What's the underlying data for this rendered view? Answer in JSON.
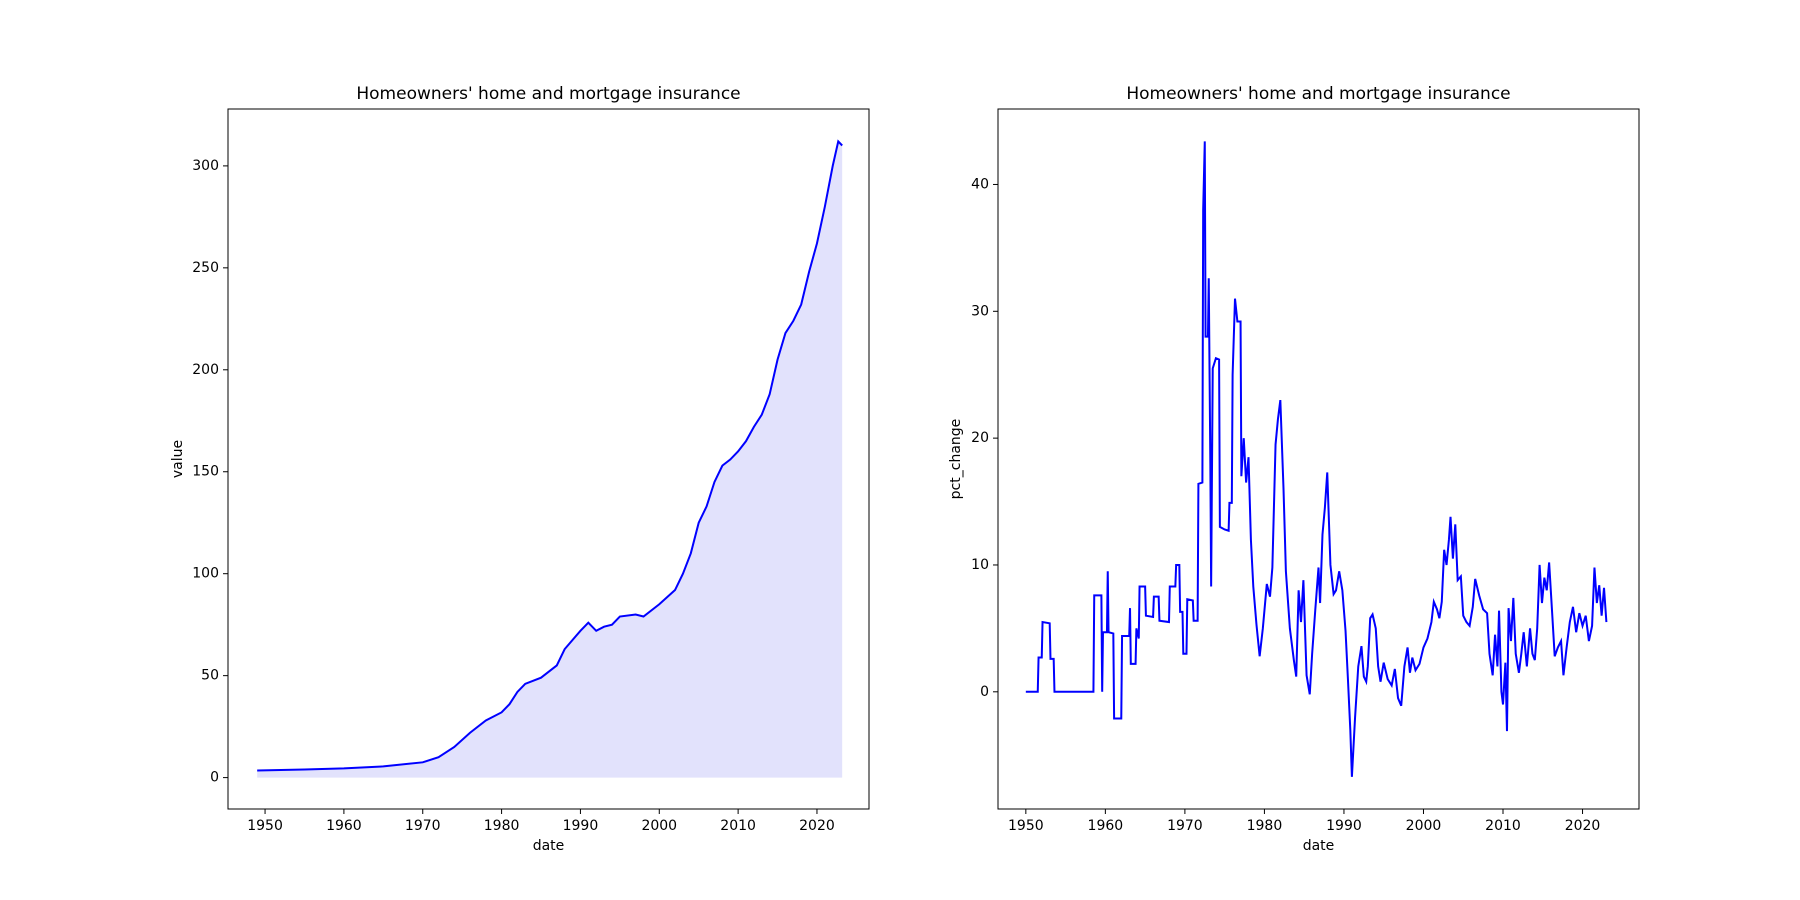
{
  "chart_data": [
    {
      "type": "area",
      "title": "Homeowners' home and mortgage insurance",
      "xlabel": "date",
      "ylabel": "value",
      "color": "#0000ff",
      "fill": "#e2e2fc",
      "xlim": [
        1945.3,
        2026.6
      ],
      "ylim": [
        -15.4,
        327.9
      ],
      "xticks": [
        1950,
        1960,
        1970,
        1980,
        1990,
        2000,
        2010,
        2020
      ],
      "yticks": [
        0,
        50,
        100,
        150,
        200,
        250,
        300
      ],
      "x": [
        1949,
        1955,
        1960,
        1965,
        1970,
        1972,
        1974,
        1976,
        1978,
        1980,
        1981,
        1982,
        1983,
        1985,
        1987,
        1988,
        1990,
        1991,
        1992,
        1993,
        1994,
        1995,
        1997,
        1998,
        2000,
        2002,
        2003,
        2004,
        2005,
        2006,
        2007,
        2008,
        2009,
        2010,
        2011,
        2012,
        2013,
        2014,
        2015,
        2016,
        2017,
        2018,
        2019,
        2020,
        2021,
        2022,
        2022.7,
        2023.2
      ],
      "values": [
        3.5,
        4,
        4.5,
        5.5,
        7.5,
        10,
        15,
        22,
        28,
        32,
        36,
        42,
        46,
        49,
        55,
        63,
        72,
        76,
        72,
        74,
        75,
        79,
        80,
        79,
        85,
        92,
        100,
        110,
        125,
        133,
        145,
        153,
        156,
        160,
        165,
        172,
        178,
        188,
        205,
        218,
        224,
        232,
        248,
        262,
        280,
        300,
        312,
        310
      ]
    },
    {
      "type": "line",
      "title": "Homeowners' home and mortgage insurance",
      "xlabel": "date",
      "ylabel": "pct_change",
      "color": "#0000ff",
      "xlim": [
        1946.5,
        2027.1
      ],
      "ylim": [
        -9.24,
        45.95
      ],
      "xticks": [
        1950,
        1960,
        1970,
        1980,
        1990,
        2000,
        2010,
        2020
      ],
      "yticks": [
        0,
        10,
        20,
        30,
        40
      ],
      "x": [
        1950,
        1951.5,
        1951.6,
        1952,
        1952.1,
        1953,
        1953.1,
        1953.5,
        1953.6,
        1958.5,
        1958.6,
        1959.5,
        1959.6,
        1959.7,
        1960.2,
        1960.3,
        1960.4,
        1961,
        1961.1,
        1962,
        1962.1,
        1963,
        1963.1,
        1963.2,
        1963.8,
        1963.9,
        1964.2,
        1964.3,
        1965,
        1965.1,
        1966,
        1966.1,
        1966.7,
        1966.8,
        1968,
        1968.1,
        1968.8,
        1968.9,
        1969.3,
        1969.4,
        1969.7,
        1969.8,
        1970.2,
        1970.3,
        1971,
        1971.1,
        1971.6,
        1971.7,
        1972.2,
        1972.3,
        1972.5,
        1972.6,
        1972.9,
        1973,
        1973.2,
        1973.3,
        1973.5,
        1973.9,
        1974.3,
        1974.4,
        1975,
        1975.5,
        1975.6,
        1975.9,
        1976,
        1976.3,
        1976.6,
        1977,
        1977.1,
        1977.4,
        1977.7,
        1978,
        1978.3,
        1978.6,
        1979,
        1979.4,
        1979.8,
        1980.3,
        1980.7,
        1981,
        1981.4,
        1981.7,
        1982,
        1982.4,
        1982.7,
        1983.2,
        1983.7,
        1984,
        1984.3,
        1984.6,
        1984.9,
        1985.3,
        1985.7,
        1986,
        1986.4,
        1986.8,
        1987,
        1987.3,
        1987.6,
        1987.9,
        1988.3,
        1988.7,
        1989,
        1989.4,
        1989.8,
        1990.2,
        1990.5,
        1990.8,
        1991,
        1991.4,
        1991.8,
        1992.2,
        1992.5,
        1992.8,
        1993,
        1993.3,
        1993.6,
        1994,
        1994.3,
        1994.6,
        1995,
        1995.5,
        1996,
        1996.4,
        1996.8,
        1997.2,
        1997.6,
        1998,
        1998.3,
        1998.6,
        1999,
        1999.5,
        2000,
        2000.5,
        2001,
        2001.3,
        2001.7,
        2002,
        2002.3,
        2002.6,
        2002.9,
        2003.2,
        2003.4,
        2003.7,
        2004,
        2004.3,
        2004.7,
        2005,
        2005.4,
        2005.8,
        2006.2,
        2006.5,
        2007,
        2007.5,
        2008,
        2008.3,
        2008.7,
        2009,
        2009.3,
        2009.5,
        2009.8,
        2010,
        2010.3,
        2010.5,
        2010.7,
        2011,
        2011.3,
        2011.6,
        2012,
        2012.3,
        2012.6,
        2013,
        2013.4,
        2013.7,
        2014,
        2014.3,
        2014.6,
        2014.9,
        2015.2,
        2015.5,
        2015.8,
        2016.2,
        2016.5,
        2016.9,
        2017.3,
        2017.6,
        2018,
        2018.4,
        2018.8,
        2019.2,
        2019.6,
        2020,
        2020.4,
        2020.8,
        2021.2,
        2021.5,
        2021.8,
        2022.1,
        2022.4,
        2022.7,
        2023
      ],
      "values": [
        0,
        0,
        2.7,
        2.7,
        5.5,
        5.4,
        2.6,
        2.6,
        0,
        0,
        7.6,
        7.6,
        0,
        4.7,
        4.7,
        9.5,
        4.7,
        4.6,
        -2.1,
        -2.1,
        4.4,
        4.4,
        6.6,
        2.2,
        2.2,
        5,
        4.2,
        8.3,
        8.3,
        6,
        5.9,
        7.5,
        7.5,
        5.6,
        5.5,
        8.3,
        8.3,
        10,
        10,
        6.3,
        6.3,
        3,
        3,
        7.3,
        7.2,
        5.6,
        5.6,
        16.4,
        16.5,
        38,
        43.4,
        28,
        28,
        32.6,
        18,
        8.3,
        25.5,
        26.3,
        26.2,
        13,
        12.8,
        12.7,
        14.9,
        14.9,
        25,
        31,
        29.2,
        29.2,
        17,
        20,
        16.5,
        18.5,
        12,
        8.3,
        5.3,
        2.8,
        5,
        8.5,
        7.5,
        9.8,
        19.5,
        21.5,
        23,
        16,
        9.5,
        5,
        2.5,
        1.2,
        8,
        5.5,
        8.8,
        1.3,
        -0.2,
        3,
        6.5,
        9.8,
        7,
        12.4,
        14.5,
        17.3,
        10,
        7.7,
        8,
        9.5,
        8,
        4.8,
        1,
        -3,
        -6.7,
        -2,
        2,
        3.6,
        1.2,
        0.8,
        2,
        5.8,
        6.1,
        5,
        2,
        0.8,
        2.3,
        1,
        0.5,
        1.8,
        -0.5,
        -1.1,
        2,
        3.5,
        1.5,
        2.7,
        1.7,
        2.2,
        3.5,
        4.2,
        5.5,
        7.1,
        6.5,
        5.8,
        7.1,
        11.2,
        10,
        12,
        13.8,
        10.5,
        13.2,
        8.8,
        9.1,
        6,
        5.5,
        5.2,
        6.7,
        8.9,
        7.6,
        6.5,
        6.2,
        3,
        1.3,
        4.5,
        2,
        6.4,
        0,
        -1,
        2.3,
        -3.1,
        6.6,
        4,
        7.4,
        3,
        1.5,
        3,
        4.7,
        2,
        5,
        3,
        2.5,
        5,
        10,
        7,
        9,
        8,
        10.2,
        6,
        2.8,
        3.5,
        4,
        1.3,
        3.5,
        5.5,
        6.7,
        4.7,
        6.2,
        5.2,
        6,
        4,
        5.2,
        9.8,
        7,
        8.4,
        6,
        8.2,
        5.5
      ]
    }
  ]
}
